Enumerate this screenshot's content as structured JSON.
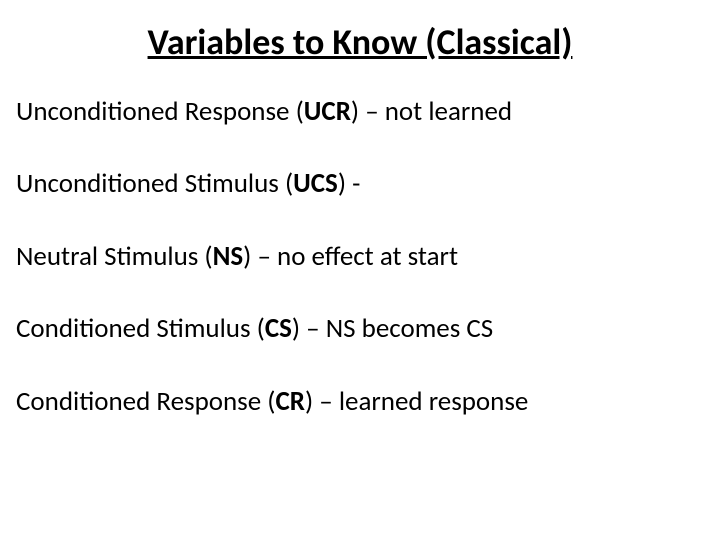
{
  "title": "Variables to Know (Classical)",
  "items": [
    {
      "term": "Unconditioned Response (",
      "abbr": "UCR",
      "close": ")",
      "sep": " – ",
      "desc": "not learned"
    },
    {
      "term": "Unconditioned Stimulus (",
      "abbr": "UCS",
      "close": ")",
      "sep": " - ",
      "desc": ""
    },
    {
      "term": "Neutral Stimulus (",
      "abbr": "NS",
      "close": ")",
      "sep": " – ",
      "desc": "no effect at start"
    },
    {
      "term": "Conditioned Stimulus (",
      "abbr": "CS",
      "close": ")",
      "sep": " – ",
      "desc": "NS becomes CS"
    },
    {
      "term": "Conditioned Response (",
      "abbr": "CR",
      "close": ")",
      "sep": " – ",
      "desc": "learned response"
    }
  ],
  "colors": {
    "background": "#ffffff",
    "text": "#000000"
  },
  "fontsize": {
    "title": 36,
    "item": 27
  }
}
